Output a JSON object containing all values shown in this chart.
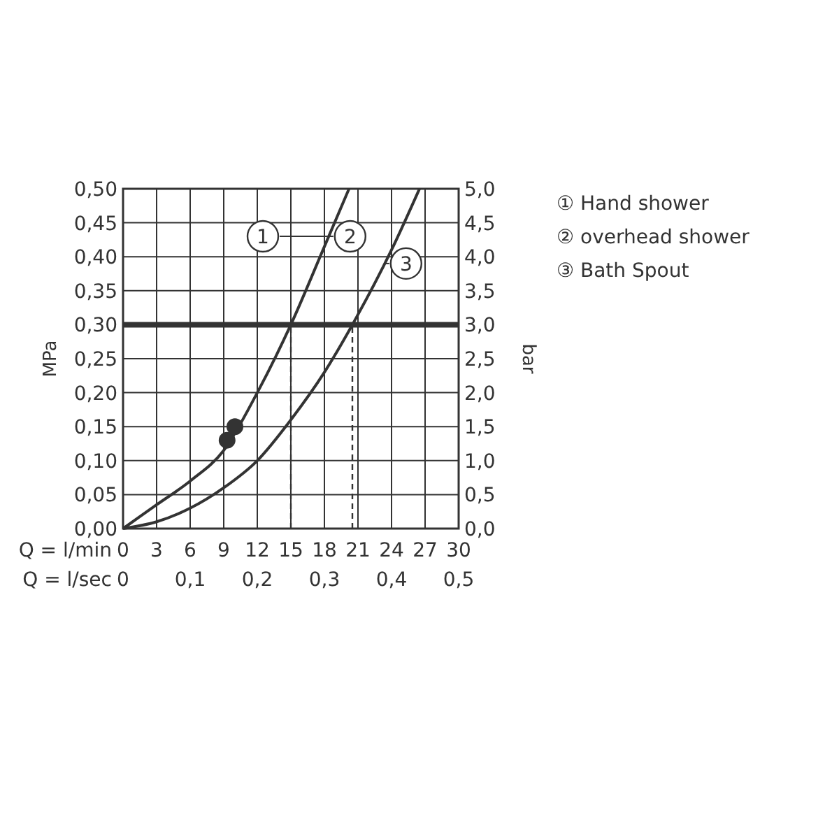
{
  "chart_data": {
    "type": "line",
    "xlabel": "Q = l/min",
    "ylabel": "MPa",
    "y2label": "bar",
    "x2label": "Q = l/sec",
    "xlim": [
      0,
      30
    ],
    "xticks": [
      0,
      3,
      6,
      9,
      12,
      15,
      18,
      21,
      24,
      27,
      30
    ],
    "x2lim": [
      0,
      0.5
    ],
    "x2ticks": [
      0,
      {
        "value": 0.1,
        "label": "0,1"
      },
      {
        "value": 0.2,
        "label": "0,2"
      },
      {
        "value": 0.3,
        "label": "0,3"
      },
      {
        "value": 0.4,
        "label": "0,4"
      },
      {
        "value": 0.5,
        "label": "0,5"
      }
    ],
    "ylim": [
      0,
      0.5
    ],
    "yticks": [
      {
        "value": 0,
        "label": "0,00"
      },
      {
        "value": 0.05,
        "label": "0,05"
      },
      {
        "value": 0.1,
        "label": "0,10"
      },
      {
        "value": 0.15,
        "label": "0,15"
      },
      {
        "value": 0.2,
        "label": "0,20"
      },
      {
        "value": 0.25,
        "label": "0,25"
      },
      {
        "value": 0.3,
        "label": "0,30"
      },
      {
        "value": 0.35,
        "label": "0,35"
      },
      {
        "value": 0.4,
        "label": "0,40"
      },
      {
        "value": 0.45,
        "label": "0,45"
      },
      {
        "value": 0.5,
        "label": "0,50"
      }
    ],
    "y2lim": [
      0,
      5
    ],
    "y2ticks": [
      {
        "value": 0,
        "label": "0,0"
      },
      {
        "value": 0.5,
        "label": "0,5"
      },
      {
        "value": 1,
        "label": "1,0"
      },
      {
        "value": 1.5,
        "label": "1,5"
      },
      {
        "value": 2,
        "label": "2,0"
      },
      {
        "value": 2.5,
        "label": "2,5"
      },
      {
        "value": 3,
        "label": "3,0"
      },
      {
        "value": 3.5,
        "label": "3,5"
      },
      {
        "value": 4,
        "label": "4,0"
      },
      {
        "value": 4.5,
        "label": "4,5"
      },
      {
        "value": 5,
        "label": "5,0"
      }
    ],
    "grid": true,
    "marker": "none",
    "line_style": "solid",
    "series": [
      {
        "color": "#333333",
        "x": [
          0,
          3,
          6,
          9,
          12,
          15,
          18,
          20.2
        ],
        "values": [
          0,
          0.035,
          0.07,
          0.115,
          0.2,
          0.3,
          0.415,
          0.5
        ]
      },
      {
        "color": "#333333",
        "x": [
          0,
          3,
          6,
          9,
          12,
          15,
          18,
          20.5,
          24,
          26.5
        ],
        "values": [
          0,
          0.01,
          0.03,
          0.06,
          0.1,
          0.16,
          0.23,
          0.3,
          0.41,
          0.5
        ]
      },
      {
        "type": "scatter",
        "color": "#333333",
        "marker": "circle",
        "x": [
          9.3,
          10
        ],
        "values": [
          0.13,
          0.15
        ]
      }
    ],
    "ref_lines": [
      {
        "axis": "y",
        "value": 0.3,
        "color": "#333333",
        "line_style": "solid"
      },
      {
        "axis": "x",
        "value": 15,
        "color": "#333333",
        "line_style": "dashed"
      },
      {
        "axis": "x",
        "value": 20.5,
        "color": "#333333",
        "line_style": "dashed"
      }
    ],
    "annotations": [
      {
        "text": "1",
        "x": 12.5,
        "y": 0.43
      },
      {
        "text": "2",
        "x": 20.3,
        "y": 0.43
      },
      {
        "text": "3",
        "x": 25.3,
        "y": 0.39
      },
      "① Hand shower",
      "② overhead shower",
      "③ Bath Spout"
    ]
  }
}
